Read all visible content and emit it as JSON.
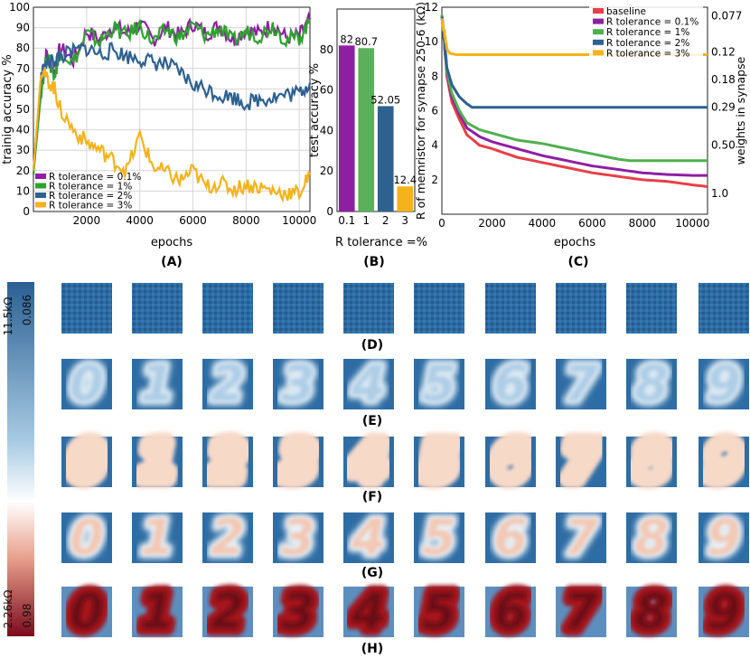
{
  "chart_data": [
    {
      "type": "line",
      "panel_label": "(A)",
      "xlabel": "epochs",
      "ylabel": "trainig accuracy %",
      "xlim": [
        0,
        10400
      ],
      "ylim": [
        0,
        100
      ],
      "xticks": [
        "2000",
        "4000",
        "6000",
        "8000",
        "10000"
      ],
      "yticks": [
        "0",
        "10",
        "20",
        "30",
        "40",
        "50",
        "60",
        "70",
        "80",
        "90",
        "100"
      ],
      "grid": true,
      "legend_position": "bottom-left",
      "series": [
        {
          "name": "R tolerance = 0.1%",
          "color": "#8e1fa3",
          "x": [
            0,
            300,
            500,
            800,
            1000,
            1500,
            2000,
            2500,
            3000,
            3500,
            4000,
            4500,
            5000,
            5500,
            6000,
            6500,
            7000,
            7500,
            8000,
            8500,
            9000,
            9500,
            10000,
            10400
          ],
          "y": [
            20,
            62,
            78,
            68,
            80,
            74,
            88,
            84,
            91,
            87,
            92,
            84,
            90,
            86,
            92,
            87,
            91,
            84,
            89,
            87,
            92,
            85,
            86,
            94
          ]
        },
        {
          "name": "R tolerance = 1%",
          "color": "#2ea22e",
          "x": [
            0,
            300,
            500,
            800,
            1000,
            1500,
            2000,
            2500,
            3000,
            3500,
            4000,
            4500,
            5000,
            5500,
            6000,
            6500,
            7000,
            7500,
            8000,
            8500,
            9000,
            9500,
            10000,
            10400
          ],
          "y": [
            18,
            60,
            76,
            66,
            79,
            73,
            87,
            83,
            90,
            86,
            91,
            83,
            89,
            85,
            91,
            86,
            90,
            83,
            88,
            86,
            91,
            84,
            85,
            93
          ]
        },
        {
          "name": "R tolerance = 2%",
          "color": "#2d6190",
          "x": [
            0,
            300,
            500,
            800,
            1000,
            1500,
            2000,
            2500,
            3000,
            3500,
            4000,
            4500,
            5000,
            5500,
            6000,
            6500,
            7000,
            7500,
            8000,
            8500,
            9000,
            9500,
            10000,
            10400
          ],
          "y": [
            20,
            68,
            72,
            74,
            76,
            78,
            80,
            77,
            79,
            76,
            75,
            73,
            72,
            68,
            62,
            60,
            57,
            56,
            53,
            55,
            56,
            57,
            58,
            63
          ]
        },
        {
          "name": "R tolerance = 3%",
          "color": "#f6b21a",
          "x": [
            0,
            300,
            500,
            800,
            1000,
            1500,
            2000,
            2500,
            3000,
            3500,
            4000,
            4500,
            5000,
            5500,
            6000,
            6500,
            7000,
            7500,
            8000,
            8500,
            9000,
            9500,
            10000,
            10400
          ],
          "y": [
            20,
            70,
            65,
            60,
            50,
            40,
            34,
            30,
            25,
            20,
            37,
            22,
            19,
            15,
            20,
            12,
            14,
            11,
            13,
            12,
            10,
            9,
            9,
            18
          ]
        }
      ]
    },
    {
      "type": "bar",
      "panel_label": "(B)",
      "xlabel": "R tolerance =%",
      "ylabel": "test accuracy %",
      "categories": [
        "0.1",
        "1",
        "2",
        "3"
      ],
      "values": [
        82,
        80.7,
        52.05,
        12.4
      ],
      "value_labels": [
        "82",
        "80.7",
        "52.05",
        "12.4"
      ],
      "colors": [
        "#8e1fa3",
        "#5cb05c",
        "#2d6190",
        "#f6b21a"
      ],
      "ylim": [
        0,
        100
      ],
      "yticks": [
        "0",
        "20",
        "40",
        "60",
        "80"
      ]
    },
    {
      "type": "line",
      "panel_label": "(C)",
      "xlabel": "epochs",
      "ylabel": "R of memristor for synapse 250-6 (kΩ)",
      "ylabel_right": "weights in synapse",
      "xlim": [
        0,
        10600
      ],
      "ylim": [
        0,
        12
      ],
      "xticks": [
        "0",
        "2000",
        "4000",
        "6000",
        "8000",
        "10000"
      ],
      "yticks": [
        "2",
        "4",
        "6",
        "8",
        "10",
        "12"
      ],
      "right_ticks": [
        "0.077",
        "0.12",
        "0.18",
        "0.29",
        "0.50",
        "1.0"
      ],
      "legend_position": "top-right",
      "series": [
        {
          "name": "baseline",
          "color": "#e64048",
          "x": [
            0,
            100,
            200,
            400,
            700,
            1000,
            1500,
            2000,
            3000,
            4000,
            5000,
            6000,
            7000,
            8000,
            9000,
            10000,
            10600
          ],
          "y": [
            11.5,
            10,
            8,
            6.5,
            5.5,
            4.6,
            4,
            3.8,
            3.3,
            3,
            2.7,
            2.4,
            2.2,
            2,
            1.9,
            1.7,
            1.6
          ]
        },
        {
          "name": "R tolerance = 0.1%",
          "color": "#8e1fa3",
          "x": [
            0,
            100,
            200,
            400,
            700,
            1000,
            1500,
            2000,
            3000,
            4000,
            5000,
            6000,
            7000,
            8000,
            9000,
            10000,
            10600
          ],
          "y": [
            11.5,
            10,
            8.2,
            6.8,
            5.8,
            5,
            4.5,
            4.2,
            3.8,
            3.4,
            3.1,
            2.8,
            2.6,
            2.4,
            2.3,
            2.25,
            2.25
          ]
        },
        {
          "name": "R tolerance = 1%",
          "color": "#4fb04f",
          "x": [
            0,
            100,
            200,
            400,
            700,
            1000,
            1500,
            2000,
            3000,
            4000,
            5000,
            6000,
            7000,
            7500,
            8000,
            9000,
            10000,
            10600
          ],
          "y": [
            11.5,
            10,
            8.3,
            7,
            6,
            5.3,
            4.9,
            4.7,
            4.3,
            4.1,
            3.8,
            3.5,
            3.2,
            3.1,
            3.1,
            3.1,
            3.1,
            3.1
          ]
        },
        {
          "name": "R tolerance = 2%",
          "color": "#2d6190",
          "x": [
            0,
            100,
            200,
            400,
            700,
            1000,
            1200,
            2000,
            4000,
            6000,
            8000,
            10000,
            10600
          ],
          "y": [
            11.5,
            10,
            8.5,
            7.5,
            6.8,
            6.4,
            6.2,
            6.2,
            6.2,
            6.2,
            6.2,
            6.2,
            6.2
          ]
        },
        {
          "name": "R tolerance = 3%",
          "color": "#f6b21a",
          "x": [
            0,
            100,
            200,
            300,
            400,
            600,
            1000,
            4000,
            8000,
            10600
          ],
          "y": [
            11.5,
            10.5,
            9.6,
            9.35,
            9.3,
            9.25,
            9.25,
            9.25,
            9.25,
            9.25
          ]
        }
      ]
    }
  ],
  "panel_labels": {
    "a": "(A)",
    "b": "(B)",
    "c": "(C)",
    "d": "(D)",
    "e": "(E)",
    "f": "(F)",
    "g": "(G)",
    "h": "(H)"
  },
  "colorbar": {
    "top_resistance": "11.5kΩ",
    "bottom_resistance": "2.26kΩ",
    "top_weight": "0.086",
    "bottom_weight": "0.98",
    "colors": [
      "#2b5f93",
      "#ffffff",
      "#8e1020"
    ]
  },
  "digit_rows": [
    {
      "label": "(D)",
      "style": "noise",
      "digits": []
    },
    {
      "label": "(E)",
      "style": "faint",
      "digits": [
        "0",
        "1",
        "2",
        "3",
        "4",
        "5",
        "6",
        "7",
        "8",
        "9"
      ]
    },
    {
      "label": "(F)",
      "style": "saturated",
      "digits": [
        "0",
        "1",
        "2",
        "3",
        "4",
        "5",
        "6",
        "7",
        "8",
        "9"
      ]
    },
    {
      "label": "(G)",
      "style": "faint-red",
      "digits": [
        "0",
        "1",
        "2",
        "3",
        "4",
        "5",
        "6",
        "7",
        "8",
        "9"
      ]
    },
    {
      "label": "(H)",
      "style": "bold-red",
      "digits": [
        "0",
        "1",
        "2",
        "3",
        "4",
        "5",
        "6",
        "7",
        "8",
        "9"
      ]
    }
  ]
}
